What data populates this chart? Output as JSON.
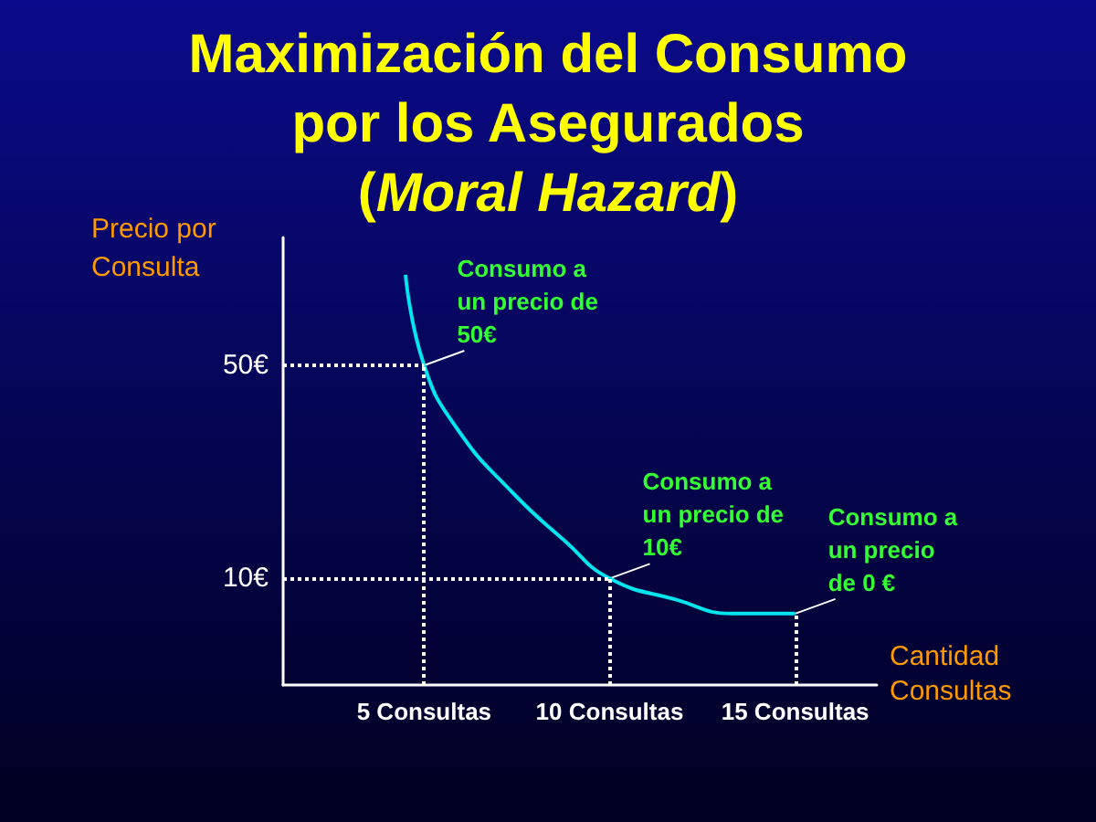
{
  "chart_data": {
    "type": "line",
    "title": "Maximización del Consumo\npor los Asegurados\n(Moral Hazard)",
    "xlabel": "Cantidad\nConsultas",
    "ylabel": "Precio por\nConsulta",
    "series": [
      {
        "color": "#00e5ee",
        "x": [
          4.5,
          5,
          5.9,
          7.4,
          8.8,
          10,
          11.8,
          13.3,
          15
        ],
        "values": [
          67,
          50,
          38,
          26,
          17,
          10,
          6,
          3.4,
          3.4
        ]
      }
    ],
    "xlim": [
      1.2,
      17.2
    ],
    "ylim": [
      -10,
      74
    ],
    "xticks": [
      {
        "value": 5,
        "label": "5 Consultas"
      },
      {
        "value": 10,
        "label": "10 Consultas"
      },
      {
        "value": 15,
        "label": "15 Consultas"
      }
    ],
    "yticks": [
      {
        "value": 10,
        "label": "10€"
      },
      {
        "value": 50,
        "label": "50€"
      }
    ],
    "ref_lines": [
      {
        "axis": "y",
        "value": 50,
        "color": "#ffffff",
        "line_style": "dotted"
      },
      {
        "axis": "y",
        "value": 10,
        "color": "#ffffff",
        "line_style": "dotted"
      },
      {
        "axis": "x",
        "value": 5,
        "color": "#ffffff",
        "line_style": "dotted"
      },
      {
        "axis": "x",
        "value": 10,
        "color": "#ffffff",
        "line_style": "dotted"
      },
      {
        "axis": "x",
        "value": 15,
        "color": "#ffffff",
        "line_style": "dotted"
      }
    ],
    "annotations": [
      {
        "text": "Consumo a\nun precio de\n50€",
        "x": 5,
        "y": 50
      },
      {
        "text": "Consumo a\nun precio de\n10€",
        "x": 10,
        "y": 10
      },
      {
        "text": "Consumo a\nun precio\nde 0 €",
        "x": 15,
        "y": 3.4
      }
    ],
    "grid": false,
    "marker": "none",
    "line_style": "solid"
  }
}
